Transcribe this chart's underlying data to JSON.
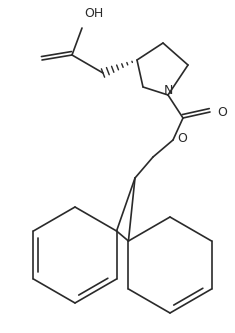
{
  "background_color": "#ffffff",
  "line_color": "#2a2a2a",
  "line_width": 1.2,
  "figsize": [
    2.35,
    3.33
  ],
  "dpi": 100,
  "xlim": [
    0,
    235
  ],
  "ylim": [
    0,
    333
  ]
}
